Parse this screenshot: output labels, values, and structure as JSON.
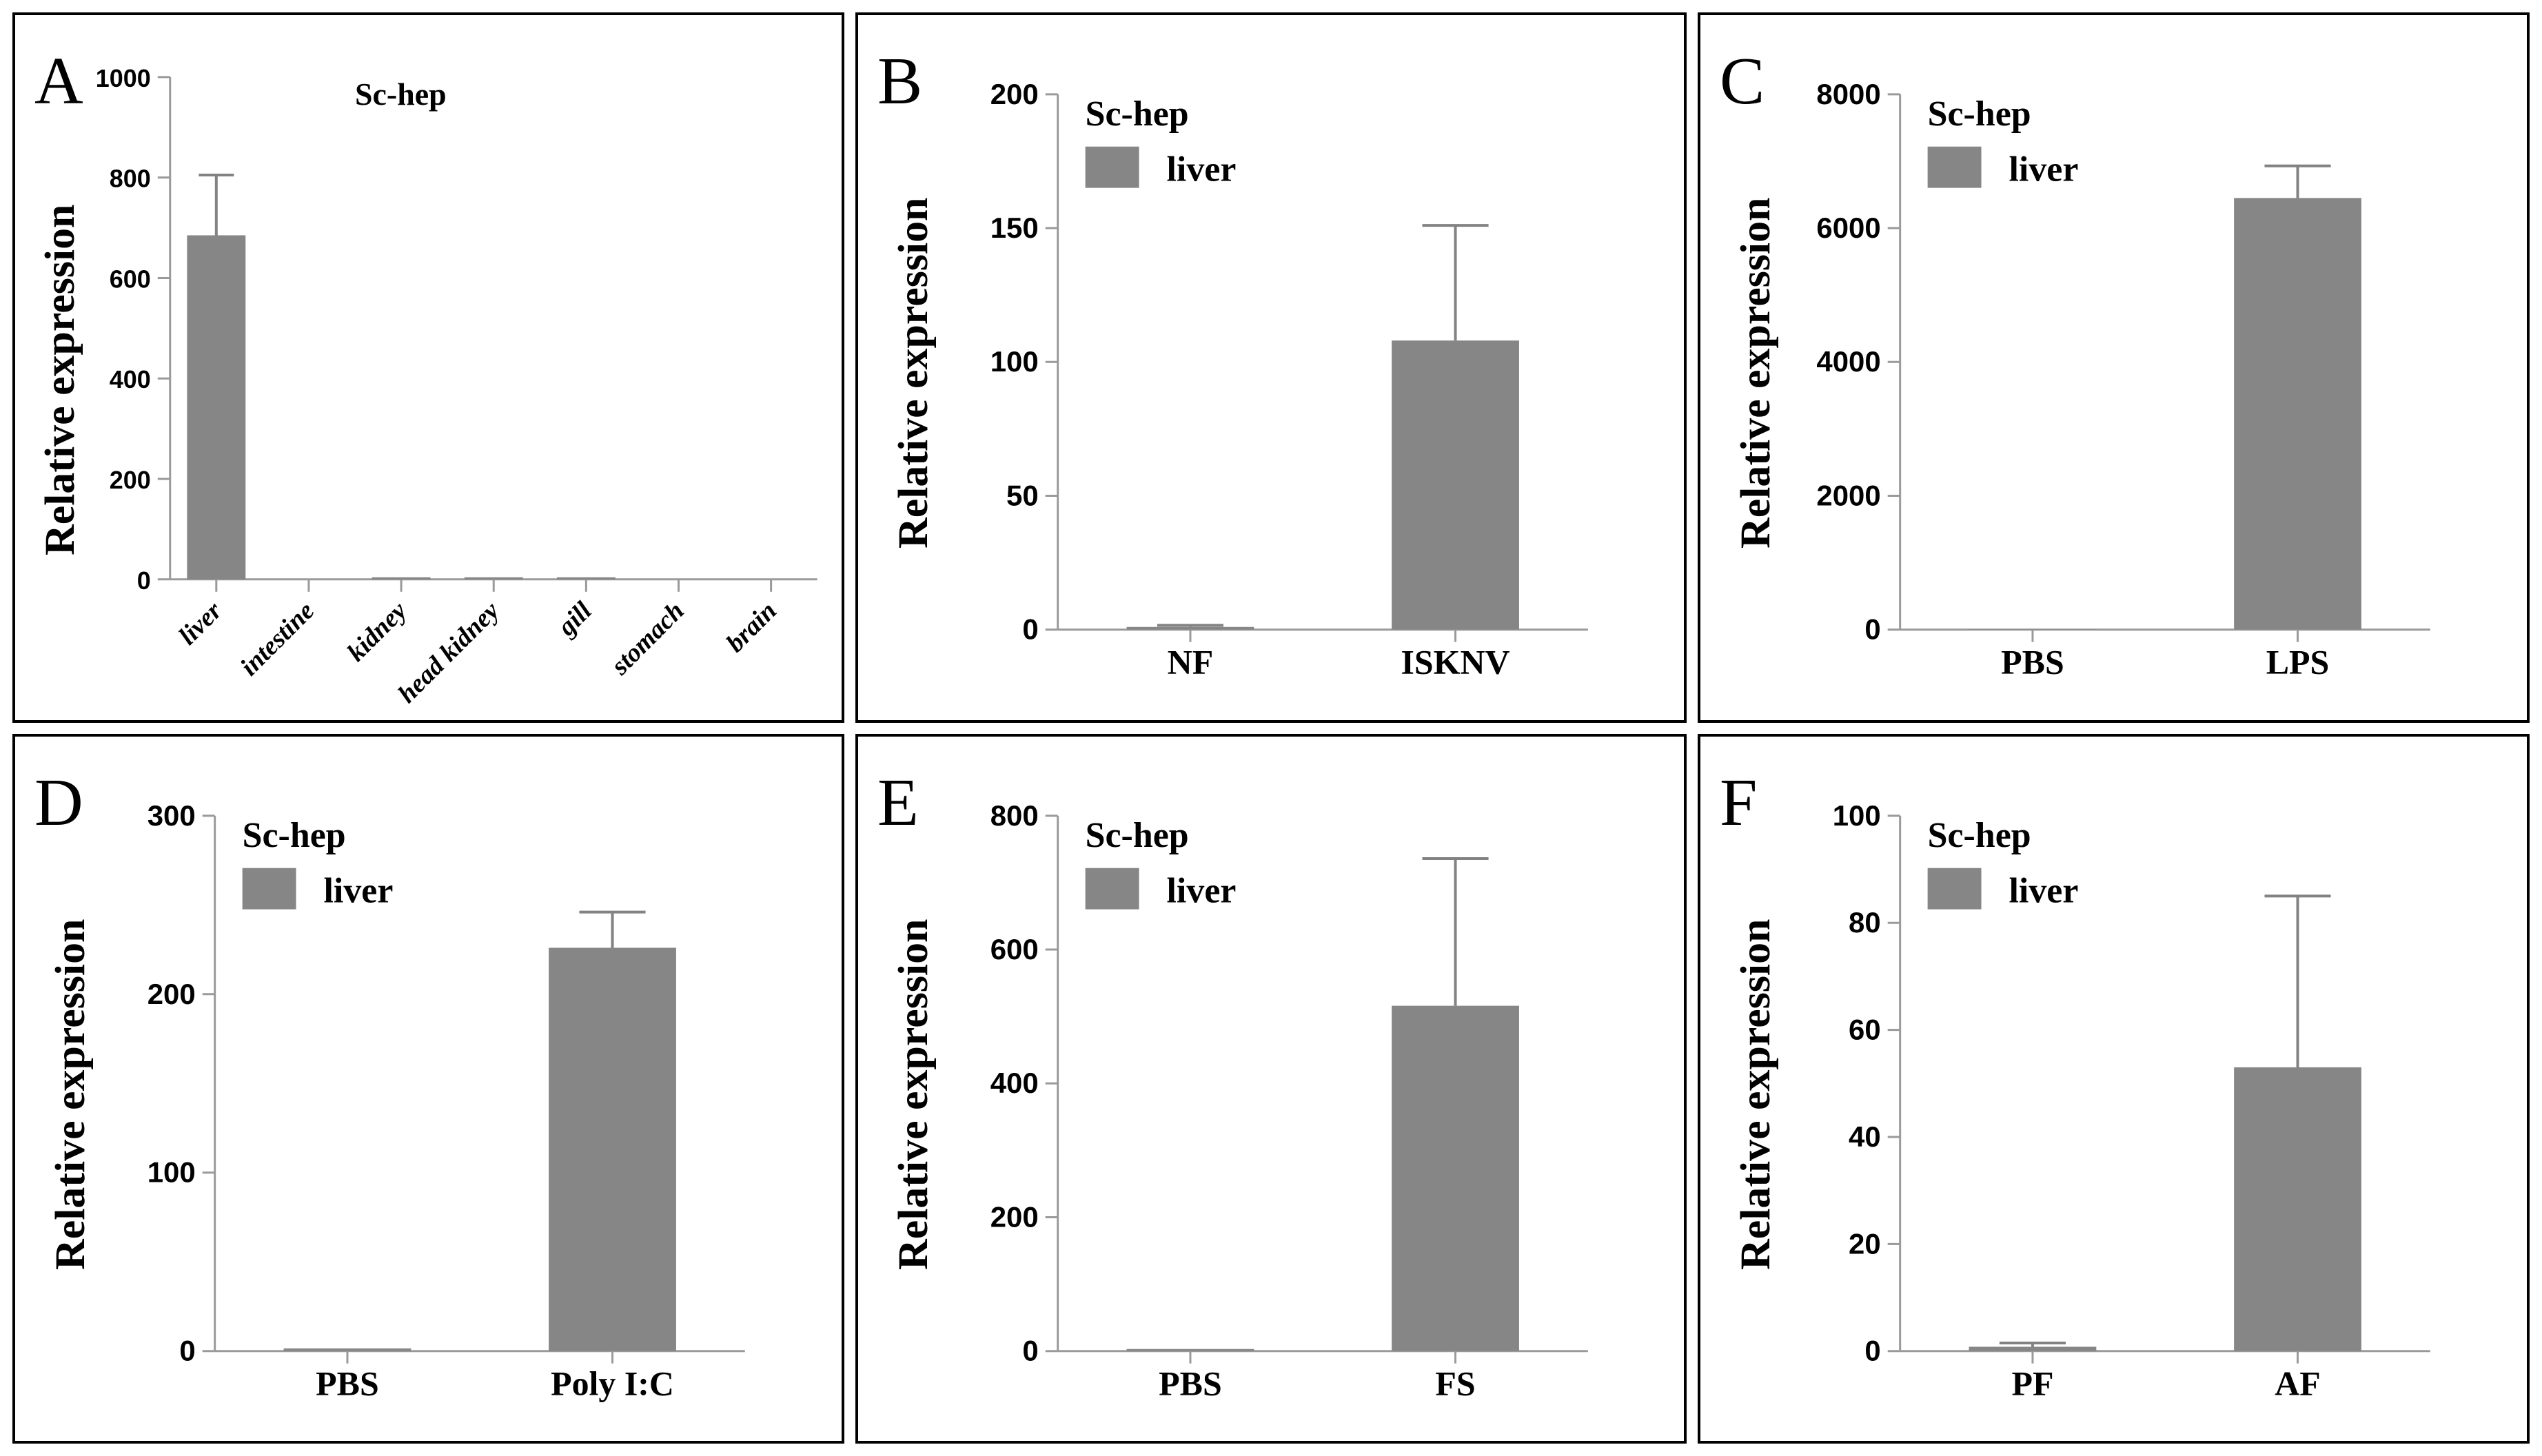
{
  "figure": {
    "background": "#ffffff",
    "panel_border_color": "#000000",
    "bar_color": "#868686",
    "axis_color": "#9a9a9a",
    "error_bar_color": "#828282",
    "text_color": "#000000"
  },
  "chart_data": [
    {
      "type": "bar",
      "panel": "A",
      "title": "Sc-hep",
      "ylabel": "Relative expression",
      "xlabel": "",
      "legend": null,
      "legend_position": "none",
      "grid": false,
      "ylim": [
        0,
        1000
      ],
      "yticks": [
        0,
        200,
        400,
        600,
        800,
        1000
      ],
      "x_labels_rotated": true,
      "categories": [
        "liver",
        "intestine",
        "kidney",
        "head kidney",
        "gill",
        "stomach",
        "brain"
      ],
      "values": [
        685,
        0,
        4,
        4,
        4,
        0,
        0
      ],
      "errors": [
        120,
        0,
        0,
        0,
        0,
        0,
        0
      ]
    },
    {
      "type": "bar",
      "panel": "B",
      "title": "Sc-hep",
      "ylabel": "Relative expression",
      "xlabel": "",
      "legend": "liver",
      "legend_position": "upper-left",
      "grid": false,
      "ylim": [
        0,
        200
      ],
      "yticks": [
        0,
        50,
        100,
        150,
        200
      ],
      "x_labels_rotated": false,
      "categories": [
        "NF",
        "ISKNV"
      ],
      "values": [
        1,
        108
      ],
      "errors": [
        0.6,
        43
      ]
    },
    {
      "type": "bar",
      "panel": "C",
      "title": "Sc-hep",
      "ylabel": "Relative expression",
      "xlabel": "",
      "legend": "liver",
      "legend_position": "upper-left",
      "grid": false,
      "ylim": [
        0,
        8000
      ],
      "yticks": [
        0,
        2000,
        4000,
        6000,
        8000
      ],
      "x_labels_rotated": false,
      "categories": [
        "PBS",
        "LPS"
      ],
      "values": [
        5,
        6450
      ],
      "errors": [
        0,
        480
      ]
    },
    {
      "type": "bar",
      "panel": "D",
      "title": "Sc-hep",
      "ylabel": "Relative expression",
      "xlabel": "",
      "legend": "liver",
      "legend_position": "upper-left",
      "grid": false,
      "ylim": [
        0,
        300
      ],
      "yticks": [
        0,
        100,
        200,
        300
      ],
      "x_labels_rotated": false,
      "categories": [
        "PBS",
        "Poly I:C"
      ],
      "values": [
        1.5,
        226
      ],
      "errors": [
        0,
        20
      ]
    },
    {
      "type": "bar",
      "panel": "E",
      "title": "Sc-hep",
      "ylabel": "Relative expression",
      "xlabel": "",
      "legend": "liver",
      "legend_position": "upper-left",
      "grid": false,
      "ylim": [
        0,
        800
      ],
      "yticks": [
        0,
        200,
        400,
        600,
        800
      ],
      "x_labels_rotated": false,
      "categories": [
        "PBS",
        "FS"
      ],
      "values": [
        2,
        516
      ],
      "errors": [
        0,
        220
      ]
    },
    {
      "type": "bar",
      "panel": "F",
      "title": "Sc-hep",
      "ylabel": "Relative expression",
      "xlabel": "",
      "legend": "liver",
      "legend_position": "upper-left",
      "grid": false,
      "ylim": [
        0,
        100
      ],
      "yticks": [
        0,
        20,
        40,
        60,
        80,
        100
      ],
      "x_labels_rotated": false,
      "categories": [
        "PF",
        "AF"
      ],
      "values": [
        0.8,
        53
      ],
      "errors": [
        0.7,
        32
      ]
    }
  ]
}
